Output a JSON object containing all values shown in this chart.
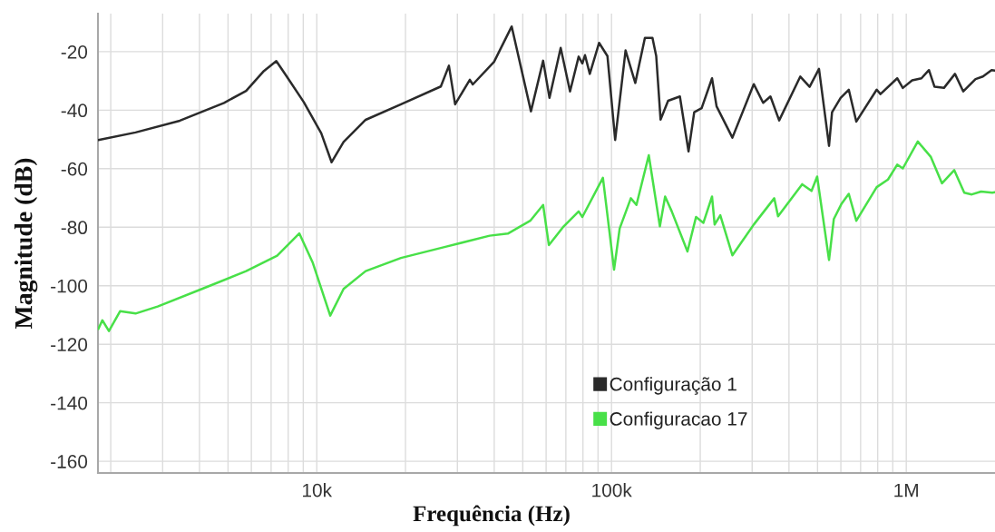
{
  "chart_data": {
    "type": "line",
    "xlabel": "Frequência (Hz)",
    "ylabel": "Magnitude (dB)",
    "log": "x",
    "grid": true,
    "legend": "bottom",
    "marker": "none",
    "line_style": "solid",
    "xlim": [
      1810,
      2000000
    ],
    "ylim": [
      -164,
      -7
    ],
    "xticks": [
      {
        "value": 2000,
        "label": null
      },
      {
        "value": 3000,
        "label": null
      },
      {
        "value": 4000,
        "label": null
      },
      {
        "value": 5000,
        "label": null
      },
      {
        "value": 6000,
        "label": null
      },
      {
        "value": 7000,
        "label": null
      },
      {
        "value": 8000,
        "label": null
      },
      {
        "value": 9000,
        "label": null
      },
      {
        "value": 10000,
        "label": "10k"
      },
      {
        "value": 20000,
        "label": null
      },
      {
        "value": 30000,
        "label": null
      },
      {
        "value": 40000,
        "label": null
      },
      {
        "value": 50000,
        "label": null
      },
      {
        "value": 60000,
        "label": null
      },
      {
        "value": 70000,
        "label": null
      },
      {
        "value": 80000,
        "label": null
      },
      {
        "value": 90000,
        "label": null
      },
      {
        "value": 100000,
        "label": "100k"
      },
      {
        "value": 200000,
        "label": null
      },
      {
        "value": 300000,
        "label": null
      },
      {
        "value": 400000,
        "label": null
      },
      {
        "value": 500000,
        "label": null
      },
      {
        "value": 600000,
        "label": null
      },
      {
        "value": 700000,
        "label": null
      },
      {
        "value": 800000,
        "label": null
      },
      {
        "value": 900000,
        "label": null
      },
      {
        "value": 1000000,
        "label": "1M"
      }
    ],
    "yticks": [
      -160,
      -140,
      -120,
      -100,
      -80,
      -60,
      -40,
      -20
    ],
    "series": [
      {
        "name": "Configuração 1",
        "color": "#2a2a2a",
        "x": [
          1815,
          2428,
          3432,
          4846,
          5759,
          6617,
          7290,
          7863,
          9032,
          10360,
          11230,
          12330,
          14650,
          19310,
          26360,
          28080,
          29470,
          33060,
          33840,
          39950,
          45850,
          53300,
          58610,
          61600,
          67230,
          72330,
          77360,
          79630,
          81290,
          84400,
          90770,
          96870,
          102900,
          111600,
          120400,
          129800,
          137700,
          141800,
          146700,
          155600,
          170600,
          182500,
          190800,
          202200,
          219300,
          227200,
          257100,
          303800,
          326900,
          346100,
          370500,
          437000,
          470000,
          505700,
          547000,
          560000,
          598700,
          638200,
          676900,
          793800,
          817500,
          931600,
          973400,
          1047000,
          1126000,
          1194000,
          1247000,
          1342000,
          1463000,
          1561000,
          1718000,
          1820000,
          1947000,
          2000000
        ],
        "values": [
          -50.2,
          -47.6,
          -43.6,
          -37.5,
          -33.4,
          -26.6,
          -23.2,
          -28.1,
          -37.2,
          -47.9,
          -57.8,
          -50.9,
          -43.3,
          -38,
          -31.9,
          -24.8,
          -38,
          -29.6,
          -31.2,
          -23.5,
          -11.4,
          -40.4,
          -23.1,
          -35.8,
          -18.7,
          -33.6,
          -21.7,
          -24,
          -21.2,
          -27.6,
          -17,
          -21.5,
          -50.2,
          -19.6,
          -30.7,
          -15.3,
          -15.3,
          -21.5,
          -43.2,
          -36.8,
          -35.3,
          -54.1,
          -40.7,
          -39.3,
          -29.1,
          -38.7,
          -49.4,
          -31.1,
          -37.5,
          -35.3,
          -43.5,
          -28.5,
          -32,
          -25.9,
          -52.2,
          -40.7,
          -35.8,
          -33,
          -43.9,
          -33,
          -34.5,
          -29.1,
          -32.4,
          -29.8,
          -29.1,
          -26.3,
          -32,
          -32.4,
          -27.6,
          -33.6,
          -29.4,
          -28.5,
          -26.3,
          -26.5
        ]
      },
      {
        "name": "Configuracao 17",
        "color": "#48e048",
        "x": [
          1815,
          1873,
          1972,
          2151,
          2428,
          2885,
          4078,
          5759,
          7340,
          8724,
          9680,
          11110,
          12330,
          14650,
          19310,
          27310,
          38600,
          44480,
          52990,
          58610,
          61300,
          68840,
          77360,
          79630,
          93500,
          102000,
          106600,
          116300,
          121500,
          133800,
          145900,
          152000,
          160100,
          181000,
          193500,
          205000,
          219300,
          223800,
          233900,
          257100,
          303800,
          356500,
          367300,
          443400,
          477100,
          498500,
          547000,
          567800,
          602200,
          638200,
          676900,
          793800,
          867000,
          931600,
          973400,
          1094000,
          1212000,
          1322000,
          1455000,
          1573000,
          1668000,
          1794000,
          1958000,
          2000000
        ],
        "values": [
          -114.8,
          -111.8,
          -115.5,
          -108.7,
          -109.5,
          -107.1,
          -101.1,
          -95,
          -89.7,
          -82.1,
          -92,
          -110.2,
          -101.1,
          -95,
          -90.5,
          -86.7,
          -82.9,
          -82.2,
          -77.8,
          -72.4,
          -86.1,
          -79.7,
          -74.6,
          -76.5,
          -63.1,
          -94.5,
          -80.4,
          -70.1,
          -72.4,
          -55.4,
          -79.7,
          -69.5,
          -74.6,
          -88.3,
          -76.5,
          -78.5,
          -69.5,
          -79.1,
          -75.9,
          -89.6,
          -79.1,
          -70.1,
          -76.3,
          -65.3,
          -67.6,
          -62.7,
          -91.2,
          -77.2,
          -72.1,
          -68.6,
          -77.8,
          -66.3,
          -63.7,
          -58.6,
          -59.9,
          -50.7,
          -56,
          -65,
          -60.5,
          -68.2,
          -68.8,
          -67.8,
          -68.2,
          -68
        ]
      }
    ]
  }
}
